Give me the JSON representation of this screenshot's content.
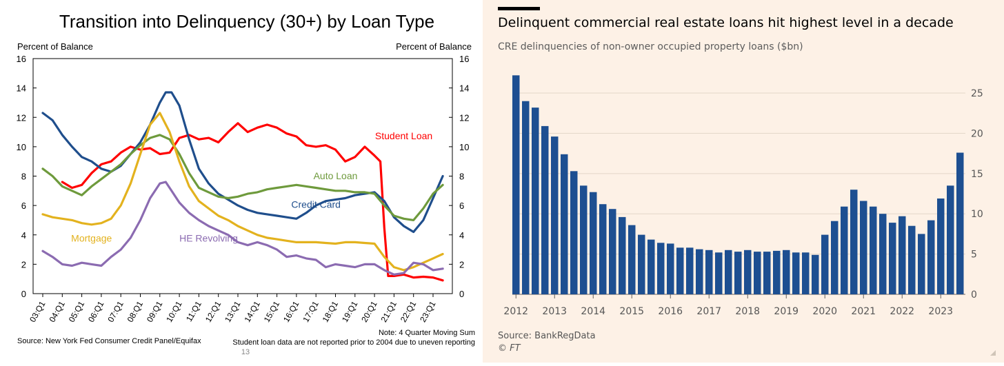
{
  "left": {
    "title": "Transition into Delinquency (30+) by Loan Type",
    "ylabel_left": "Percent of Balance",
    "ylabel_right": "Percent of Balance",
    "source": "Source: New York Fed Consumer Credit Panel/Equifax",
    "note": "Note: 4 Quarter Moving Sum",
    "note2": "Student loan data are not reported prior to 2004 due to uneven reporting",
    "page_number": "13"
  },
  "right": {
    "title": "Delinquent commercial real estate loans hit highest level in a decade",
    "subtitle": "CRE delinquencies of non-owner occupied property loans ($bn)",
    "source": "Source: BankRegData",
    "credit": "© FT",
    "accent_color": "#1d4f91",
    "background_color": "#fdf1e6"
  },
  "chart_data": [
    {
      "type": "line",
      "title": "Transition into Delinquency (30+) by Loan Type",
      "ylabel": "Percent of Balance",
      "ylim": [
        0,
        16
      ],
      "yticks": [
        0,
        2,
        4,
        6,
        8,
        10,
        12,
        14,
        16
      ],
      "x_tick_labels": [
        "03:Q1",
        "04:Q1",
        "05:Q1",
        "06:Q1",
        "07:Q1",
        "08:Q1",
        "09:Q1",
        "10:Q1",
        "11:Q1",
        "12:Q1",
        "13:Q1",
        "14:Q1",
        "15:Q1",
        "16:Q1",
        "17:Q1",
        "18:Q1",
        "19:Q1",
        "20:Q1",
        "21:Q1",
        "22:Q1",
        "23:Q1"
      ],
      "grid": false,
      "series": [
        {
          "name": "Student Loan",
          "color": "#ff0000",
          "label_pos": [
            18.5,
            10.5
          ],
          "anchor": "middle",
          "points": [
            [
              1.0,
              7.6
            ],
            [
              1.5,
              7.2
            ],
            [
              2.0,
              7.4
            ],
            [
              2.5,
              8.2
            ],
            [
              3.0,
              8.8
            ],
            [
              3.5,
              9.0
            ],
            [
              4.0,
              9.6
            ],
            [
              4.5,
              10.0
            ],
            [
              5.0,
              9.8
            ],
            [
              5.5,
              9.9
            ],
            [
              6.0,
              9.5
            ],
            [
              6.5,
              9.6
            ],
            [
              7.0,
              10.6
            ],
            [
              7.5,
              10.8
            ],
            [
              8.0,
              10.5
            ],
            [
              8.5,
              10.6
            ],
            [
              9.0,
              10.3
            ],
            [
              9.5,
              11.0
            ],
            [
              10.0,
              11.6
            ],
            [
              10.5,
              11.0
            ],
            [
              11.0,
              11.3
            ],
            [
              11.5,
              11.5
            ],
            [
              12.0,
              11.3
            ],
            [
              12.5,
              10.9
            ],
            [
              13.0,
              10.7
            ],
            [
              13.5,
              10.1
            ],
            [
              14.0,
              10.0
            ],
            [
              14.5,
              10.1
            ],
            [
              15.0,
              9.8
            ],
            [
              15.5,
              9.0
            ],
            [
              16.0,
              9.3
            ],
            [
              16.5,
              10.0
            ],
            [
              17.0,
              9.4
            ],
            [
              17.3,
              9.0
            ],
            [
              17.5,
              4.5
            ],
            [
              17.7,
              1.2
            ],
            [
              18.0,
              1.2
            ],
            [
              18.5,
              1.3
            ],
            [
              19.0,
              1.1
            ],
            [
              19.5,
              1.15
            ],
            [
              20.0,
              1.1
            ],
            [
              20.5,
              0.9
            ]
          ]
        },
        {
          "name": "Credit Card",
          "color": "#1f4e8c",
          "label_pos": [
            14.0,
            5.85
          ],
          "anchor": "middle",
          "points": [
            [
              0.0,
              12.3
            ],
            [
              0.5,
              11.8
            ],
            [
              1.0,
              10.8
            ],
            [
              1.5,
              10.0
            ],
            [
              2.0,
              9.3
            ],
            [
              2.5,
              9.0
            ],
            [
              3.0,
              8.5
            ],
            [
              3.5,
              8.3
            ],
            [
              4.0,
              8.7
            ],
            [
              4.5,
              9.5
            ],
            [
              5.0,
              10.3
            ],
            [
              5.5,
              11.5
            ],
            [
              6.0,
              13.0
            ],
            [
              6.3,
              13.7
            ],
            [
              6.6,
              13.7
            ],
            [
              7.0,
              12.8
            ],
            [
              7.5,
              10.5
            ],
            [
              8.0,
              8.5
            ],
            [
              8.5,
              7.5
            ],
            [
              9.0,
              6.8
            ],
            [
              9.5,
              6.4
            ],
            [
              10.0,
              6.0
            ],
            [
              10.5,
              5.7
            ],
            [
              11.0,
              5.5
            ],
            [
              11.5,
              5.4
            ],
            [
              12.0,
              5.3
            ],
            [
              12.5,
              5.2
            ],
            [
              13.0,
              5.1
            ],
            [
              13.5,
              5.5
            ],
            [
              14.0,
              6.0
            ],
            [
              14.5,
              6.3
            ],
            [
              15.0,
              6.4
            ],
            [
              15.5,
              6.5
            ],
            [
              16.0,
              6.7
            ],
            [
              16.5,
              6.8
            ],
            [
              17.0,
              6.9
            ],
            [
              17.5,
              6.3
            ],
            [
              18.0,
              5.2
            ],
            [
              18.5,
              4.6
            ],
            [
              19.0,
              4.2
            ],
            [
              19.5,
              5.0
            ],
            [
              20.0,
              6.5
            ],
            [
              20.5,
              8.0
            ]
          ]
        },
        {
          "name": "Auto Loan",
          "color": "#6e9a3c",
          "label_pos": [
            15.0,
            7.8
          ],
          "anchor": "middle",
          "points": [
            [
              0.0,
              8.5
            ],
            [
              0.5,
              8.0
            ],
            [
              1.0,
              7.3
            ],
            [
              1.5,
              7.0
            ],
            [
              2.0,
              6.7
            ],
            [
              2.5,
              7.3
            ],
            [
              3.0,
              7.8
            ],
            [
              3.5,
              8.3
            ],
            [
              4.0,
              8.8
            ],
            [
              4.5,
              9.5
            ],
            [
              5.0,
              10.1
            ],
            [
              5.5,
              10.6
            ],
            [
              6.0,
              10.8
            ],
            [
              6.5,
              10.5
            ],
            [
              7.0,
              9.5
            ],
            [
              7.5,
              8.2
            ],
            [
              8.0,
              7.2
            ],
            [
              8.5,
              6.9
            ],
            [
              9.0,
              6.6
            ],
            [
              9.5,
              6.5
            ],
            [
              10.0,
              6.6
            ],
            [
              10.5,
              6.8
            ],
            [
              11.0,
              6.9
            ],
            [
              11.5,
              7.1
            ],
            [
              12.0,
              7.2
            ],
            [
              12.5,
              7.3
            ],
            [
              13.0,
              7.4
            ],
            [
              13.5,
              7.3
            ],
            [
              14.0,
              7.2
            ],
            [
              14.5,
              7.1
            ],
            [
              15.0,
              7.0
            ],
            [
              15.5,
              7.0
            ],
            [
              16.0,
              6.9
            ],
            [
              16.5,
              6.9
            ],
            [
              17.0,
              6.8
            ],
            [
              17.5,
              6.0
            ],
            [
              18.0,
              5.3
            ],
            [
              18.5,
              5.1
            ],
            [
              19.0,
              5.0
            ],
            [
              19.5,
              5.8
            ],
            [
              20.0,
              6.8
            ],
            [
              20.5,
              7.4
            ]
          ]
        },
        {
          "name": "Mortgage",
          "color": "#e3b21e",
          "label_pos": [
            2.5,
            3.55
          ],
          "anchor": "middle",
          "points": [
            [
              0.0,
              5.4
            ],
            [
              0.5,
              5.2
            ],
            [
              1.0,
              5.1
            ],
            [
              1.5,
              5.0
            ],
            [
              2.0,
              4.8
            ],
            [
              2.5,
              4.7
            ],
            [
              3.0,
              4.8
            ],
            [
              3.5,
              5.1
            ],
            [
              4.0,
              6.0
            ],
            [
              4.5,
              7.5
            ],
            [
              5.0,
              9.5
            ],
            [
              5.5,
              11.5
            ],
            [
              6.0,
              12.3
            ],
            [
              6.5,
              11.0
            ],
            [
              7.0,
              9.0
            ],
            [
              7.5,
              7.3
            ],
            [
              8.0,
              6.3
            ],
            [
              8.5,
              5.8
            ],
            [
              9.0,
              5.3
            ],
            [
              9.5,
              5.0
            ],
            [
              10.0,
              4.6
            ],
            [
              10.5,
              4.3
            ],
            [
              11.0,
              4.0
            ],
            [
              11.5,
              3.8
            ],
            [
              12.0,
              3.7
            ],
            [
              12.5,
              3.6
            ],
            [
              13.0,
              3.5
            ],
            [
              13.5,
              3.5
            ],
            [
              14.0,
              3.5
            ],
            [
              14.5,
              3.45
            ],
            [
              15.0,
              3.4
            ],
            [
              15.5,
              3.5
            ],
            [
              16.0,
              3.5
            ],
            [
              16.5,
              3.45
            ],
            [
              17.0,
              3.4
            ],
            [
              17.5,
              2.5
            ],
            [
              18.0,
              1.8
            ],
            [
              18.5,
              1.6
            ],
            [
              19.0,
              1.8
            ],
            [
              19.5,
              2.1
            ],
            [
              20.0,
              2.4
            ],
            [
              20.5,
              2.7
            ]
          ]
        },
        {
          "name": "HE Revolving",
          "color": "#8b6bb1",
          "label_pos": [
            7.0,
            3.55
          ],
          "anchor": "start",
          "points": [
            [
              0.0,
              2.9
            ],
            [
              0.5,
              2.5
            ],
            [
              1.0,
              2.0
            ],
            [
              1.5,
              1.9
            ],
            [
              2.0,
              2.1
            ],
            [
              2.5,
              2.0
            ],
            [
              3.0,
              1.9
            ],
            [
              3.5,
              2.5
            ],
            [
              4.0,
              3.0
            ],
            [
              4.5,
              3.8
            ],
            [
              5.0,
              5.0
            ],
            [
              5.5,
              6.5
            ],
            [
              6.0,
              7.5
            ],
            [
              6.3,
              7.6
            ],
            [
              6.6,
              7.0
            ],
            [
              7.0,
              6.2
            ],
            [
              7.5,
              5.5
            ],
            [
              8.0,
              5.0
            ],
            [
              8.5,
              4.6
            ],
            [
              9.0,
              4.3
            ],
            [
              9.5,
              4.0
            ],
            [
              10.0,
              3.5
            ],
            [
              10.5,
              3.3
            ],
            [
              11.0,
              3.5
            ],
            [
              11.5,
              3.3
            ],
            [
              12.0,
              3.0
            ],
            [
              12.5,
              2.5
            ],
            [
              13.0,
              2.6
            ],
            [
              13.5,
              2.4
            ],
            [
              14.0,
              2.3
            ],
            [
              14.5,
              1.8
            ],
            [
              15.0,
              2.0
            ],
            [
              15.5,
              1.9
            ],
            [
              16.0,
              1.8
            ],
            [
              16.5,
              2.0
            ],
            [
              17.0,
              2.0
            ],
            [
              17.5,
              1.6
            ],
            [
              18.0,
              1.3
            ],
            [
              18.5,
              1.4
            ],
            [
              19.0,
              2.1
            ],
            [
              19.5,
              2.0
            ],
            [
              20.0,
              1.6
            ],
            [
              20.5,
              1.7
            ]
          ]
        }
      ]
    },
    {
      "type": "bar",
      "title": "Delinquent commercial real estate loans hit highest level in a decade",
      "ylabel": "CRE delinquencies of non-owner occupied property loans ($bn)",
      "ylim": [
        0,
        28
      ],
      "yticks": [
        0,
        5,
        10,
        15,
        20,
        25
      ],
      "x_tick_labels": [
        "2012",
        "2013",
        "2014",
        "2015",
        "2016",
        "2017",
        "2018",
        "2019",
        "2020",
        "2021",
        "2022",
        "2023"
      ],
      "bars_per_year": 4,
      "color": "#1d4f91",
      "values": [
        27.2,
        24.0,
        23.2,
        20.9,
        19.6,
        17.4,
        15.3,
        13.5,
        12.7,
        11.2,
        10.6,
        9.6,
        8.6,
        7.4,
        6.8,
        6.4,
        6.3,
        5.8,
        5.8,
        5.6,
        5.5,
        5.2,
        5.5,
        5.3,
        5.5,
        5.3,
        5.3,
        5.4,
        5.5,
        5.2,
        5.2,
        4.9,
        7.4,
        9.1,
        10.9,
        13.0,
        11.6,
        10.9,
        10.0,
        8.9,
        9.7,
        8.5,
        7.5,
        9.2,
        11.9,
        13.5,
        17.6
      ]
    }
  ]
}
